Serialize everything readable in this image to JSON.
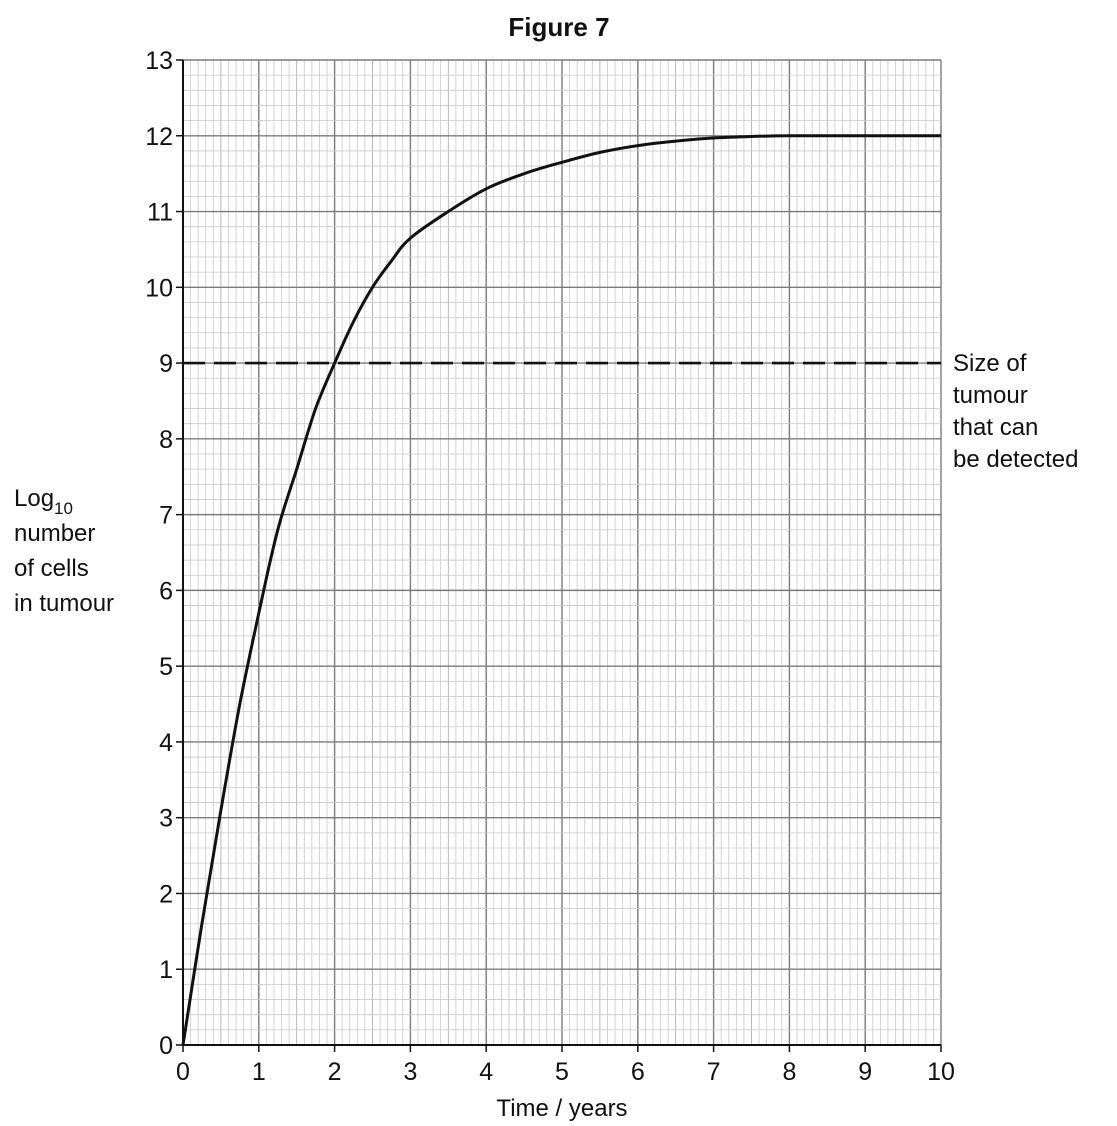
{
  "chart_data": {
    "type": "line",
    "title": "Figure 7",
    "xlabel": "Time / years",
    "ylabel": {
      "lines": [
        "Log",
        "number",
        "of cells",
        "in tumour"
      ],
      "subscript": "10"
    },
    "xlim": [
      0,
      10
    ],
    "ylim": [
      0,
      13
    ],
    "x_ticks": [
      0,
      1,
      2,
      3,
      4,
      5,
      6,
      7,
      8,
      9,
      10
    ],
    "y_ticks": [
      0,
      1,
      2,
      3,
      4,
      5,
      6,
      7,
      8,
      9,
      10,
      11,
      12,
      13
    ],
    "grid": true,
    "series": [
      {
        "x": [
          0,
          0.25,
          0.5,
          0.75,
          1,
          1.25,
          1.5,
          1.75,
          2,
          2.25,
          2.5,
          2.75,
          3,
          3.5,
          4,
          4.5,
          5,
          5.5,
          6,
          6.5,
          7,
          7.5,
          8,
          9,
          10
        ],
        "y": [
          0,
          1.6,
          3.1,
          4.5,
          5.7,
          6.8,
          7.6,
          8.4,
          9.0,
          9.55,
          10.0,
          10.35,
          10.65,
          11.0,
          11.3,
          11.5,
          11.65,
          11.78,
          11.87,
          11.93,
          11.97,
          11.99,
          12.0,
          12.0,
          12.0
        ],
        "color": "#111111"
      }
    ],
    "reference_line": {
      "y": 9,
      "style": "dashed",
      "label_lines": [
        "Size of",
        "tumour",
        "that can",
        "be detected"
      ]
    }
  }
}
